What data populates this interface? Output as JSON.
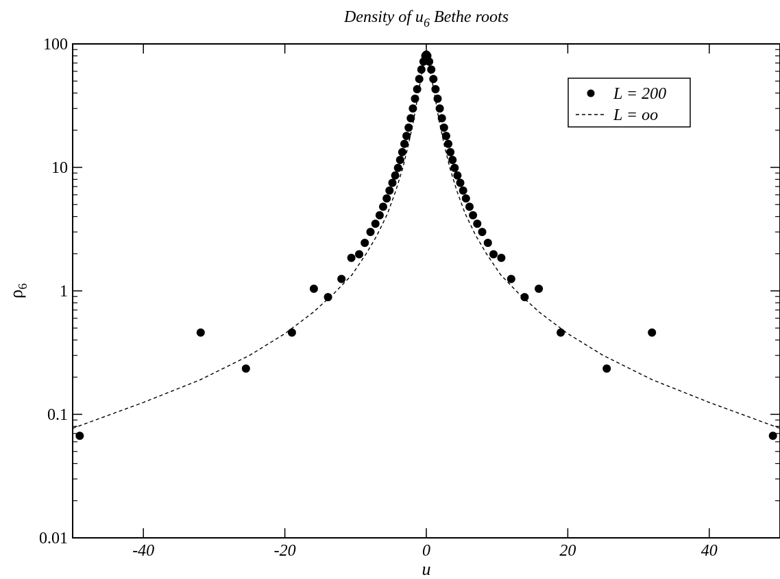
{
  "chart_data": {
    "type": "scatter",
    "title": {
      "prefix": "Density of u",
      "subscript": "6",
      "suffix": " Bethe roots"
    },
    "xlabel": "u",
    "ylabel": {
      "symbol": "ρ",
      "subscript": "6"
    },
    "xlim": [
      -50,
      50
    ],
    "ylim": [
      0.01,
      100
    ],
    "yscale": "log",
    "grid": false,
    "legend_position": "top-right",
    "x_ticks": [
      -40,
      -20,
      0,
      20,
      40
    ],
    "x_tick_labels": [
      "-40",
      "-20",
      "0",
      "20",
      "40"
    ],
    "y_ticks": [
      0.01,
      0.1,
      1,
      10,
      100
    ],
    "y_tick_labels": [
      "0.01",
      "0.1",
      "1",
      "10",
      "100"
    ],
    "series": [
      {
        "name": "L = 200",
        "style": "markers",
        "color": "#000000",
        "points": [
          [
            -49,
            0.067
          ],
          [
            -31.9,
            0.46
          ],
          [
            -25.5,
            0.235
          ],
          [
            -19,
            0.46
          ],
          [
            -15.9,
            1.04
          ],
          [
            -13.9,
            0.89
          ],
          [
            -12,
            1.25
          ],
          [
            -10.6,
            1.85
          ],
          [
            -9.5,
            1.98
          ],
          [
            -8.7,
            2.45
          ],
          [
            -7.9,
            3.0
          ],
          [
            -7.2,
            3.5
          ],
          [
            -6.6,
            4.1
          ],
          [
            -6.1,
            4.8
          ],
          [
            -5.6,
            5.6
          ],
          [
            -5.2,
            6.5
          ],
          [
            -4.8,
            7.5
          ],
          [
            -4.4,
            8.6
          ],
          [
            -4.0,
            9.9
          ],
          [
            -3.7,
            11.5
          ],
          [
            -3.4,
            13.3
          ],
          [
            -3.1,
            15.5
          ],
          [
            -2.8,
            18
          ],
          [
            -2.5,
            21
          ],
          [
            -2.2,
            25
          ],
          [
            -1.9,
            30
          ],
          [
            -1.6,
            36
          ],
          [
            -1.3,
            43
          ],
          [
            -1.0,
            52
          ],
          [
            -0.7,
            62
          ],
          [
            -0.4,
            72
          ],
          [
            -0.15,
            80
          ],
          [
            0,
            82
          ],
          [
            0.15,
            80
          ],
          [
            0.4,
            72
          ],
          [
            0.7,
            62
          ],
          [
            1.0,
            52
          ],
          [
            1.3,
            43
          ],
          [
            1.6,
            36
          ],
          [
            1.9,
            30
          ],
          [
            2.2,
            25
          ],
          [
            2.5,
            21
          ],
          [
            2.8,
            18
          ],
          [
            3.1,
            15.5
          ],
          [
            3.4,
            13.3
          ],
          [
            3.7,
            11.5
          ],
          [
            4.0,
            9.9
          ],
          [
            4.4,
            8.6
          ],
          [
            4.8,
            7.5
          ],
          [
            5.2,
            6.5
          ],
          [
            5.6,
            5.6
          ],
          [
            6.1,
            4.8
          ],
          [
            6.6,
            4.1
          ],
          [
            7.2,
            3.5
          ],
          [
            7.9,
            3.0
          ],
          [
            8.7,
            2.45
          ],
          [
            9.5,
            1.98
          ],
          [
            10.6,
            1.85
          ],
          [
            12,
            1.25
          ],
          [
            13.9,
            0.89
          ],
          [
            15.9,
            1.04
          ],
          [
            19,
            0.46
          ],
          [
            25.5,
            0.235
          ],
          [
            31.9,
            0.46
          ],
          [
            49,
            0.067
          ]
        ]
      },
      {
        "name": "L = oo",
        "style": "dashed-line",
        "color": "#000000",
        "points": [
          [
            -50,
            0.077
          ],
          [
            -40,
            0.125
          ],
          [
            -32,
            0.19
          ],
          [
            -25,
            0.3
          ],
          [
            -20,
            0.45
          ],
          [
            -16,
            0.67
          ],
          [
            -13,
            0.96
          ],
          [
            -10.5,
            1.35
          ],
          [
            -8.5,
            2.0
          ],
          [
            -7,
            2.8
          ],
          [
            -5.5,
            4.2
          ],
          [
            -4.3,
            6.5
          ],
          [
            -3.3,
            10
          ],
          [
            -2.5,
            15.5
          ],
          [
            -1.8,
            24
          ],
          [
            -1.2,
            38
          ],
          [
            -0.7,
            55
          ],
          [
            -0.3,
            72
          ],
          [
            0,
            82
          ],
          [
            0.3,
            72
          ],
          [
            0.7,
            55
          ],
          [
            1.2,
            38
          ],
          [
            1.8,
            24
          ],
          [
            2.5,
            15.5
          ],
          [
            3.3,
            10
          ],
          [
            4.3,
            6.5
          ],
          [
            5.5,
            4.2
          ],
          [
            7,
            2.8
          ],
          [
            8.5,
            2.0
          ],
          [
            10.5,
            1.35
          ],
          [
            13,
            0.96
          ],
          [
            16,
            0.67
          ],
          [
            20,
            0.45
          ],
          [
            25,
            0.3
          ],
          [
            32,
            0.19
          ],
          [
            40,
            0.125
          ],
          [
            50,
            0.077
          ]
        ]
      }
    ]
  }
}
